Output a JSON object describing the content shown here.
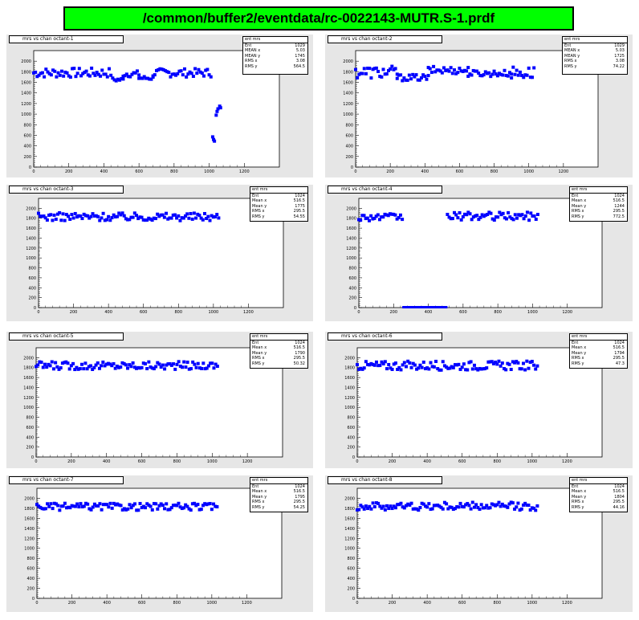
{
  "header": {
    "title": "/common/buffer2/eventdata/rc-0022143-MUTR.S-1.prdf"
  },
  "chart_data": [
    {
      "type": "scatter",
      "title": "mrs vs chan octant-1",
      "xlim": [
        0,
        1400
      ],
      "ylim": [
        0,
        2200
      ],
      "xticks": [
        0,
        200,
        400,
        600,
        800,
        1000,
        1200
      ],
      "xtick_labels": [
        "0",
        "200",
        "400",
        "600",
        "800",
        "1000",
        "1200"
      ],
      "yticks": [
        0,
        200,
        400,
        600,
        800,
        1000,
        1200,
        1400,
        1600,
        1800,
        2000
      ],
      "ytick_labels": [
        "0",
        "200",
        "400",
        "600",
        "800",
        "1000",
        "1200",
        "1400",
        "1600",
        "1800",
        "2000"
      ],
      "stats": {
        "name": "ent mrs",
        "rows": [
          [
            "Ent",
            "1029"
          ],
          [
            "MEAN x",
            "5.03"
          ],
          [
            "MEAN y",
            "1745"
          ],
          [
            "RMS x",
            "3.08"
          ],
          [
            "RMS y",
            "564.5"
          ]
        ]
      },
      "segments": [
        {
          "x0": 0,
          "x1": 440,
          "y": 1780,
          "amp": 90,
          "step": 10
        },
        {
          "x0": 450,
          "x1": 510,
          "y": 1650,
          "amp": 40,
          "step": 10
        },
        {
          "x0": 510,
          "x1": 600,
          "y": 1760,
          "amp": 60,
          "step": 10
        },
        {
          "x0": 600,
          "x1": 680,
          "y": 1680,
          "amp": 40,
          "step": 10
        },
        {
          "x0": 680,
          "x1": 1010,
          "y": 1780,
          "amp": 80,
          "step": 10
        }
      ],
      "points": [
        [
          1020,
          570
        ],
        [
          1025,
          520
        ],
        [
          1030,
          490
        ],
        [
          1040,
          980
        ],
        [
          1045,
          1050
        ],
        [
          1050,
          1100
        ],
        [
          1060,
          1150
        ],
        [
          1065,
          1120
        ]
      ],
      "zero_line": null
    },
    {
      "type": "scatter",
      "title": "mrs vs chan octant-2",
      "xlim": [
        0,
        1400
      ],
      "ylim": [
        0,
        2200
      ],
      "xticks": [
        0,
        200,
        400,
        600,
        800,
        1000,
        1200
      ],
      "xtick_labels": [
        "0",
        "200",
        "400",
        "600",
        "800",
        "1000",
        "1200"
      ],
      "yticks": [
        0,
        200,
        400,
        600,
        800,
        1000,
        1200,
        1400,
        1600,
        1800,
        2000
      ],
      "ytick_labels": [
        "0",
        "200",
        "400",
        "600",
        "800",
        "1000",
        "1200",
        "1400",
        "1600",
        "1800",
        "2000"
      ],
      "stats": {
        "name": "ent mrs",
        "rows": [
          [
            "Ent",
            "1029"
          ],
          [
            "MEAN x",
            "5.03"
          ],
          [
            "MEAN y",
            "1725"
          ],
          [
            "RMS x",
            "3.08"
          ],
          [
            "RMS y",
            "74.22"
          ]
        ]
      },
      "segments": [
        {
          "x0": 0,
          "x1": 240,
          "y": 1790,
          "amp": 120,
          "step": 10
        },
        {
          "x0": 240,
          "x1": 420,
          "y": 1690,
          "amp": 60,
          "step": 10
        },
        {
          "x0": 420,
          "x1": 650,
          "y": 1830,
          "amp": 70,
          "step": 10
        },
        {
          "x0": 650,
          "x1": 900,
          "y": 1770,
          "amp": 60,
          "step": 10
        },
        {
          "x0": 900,
          "x1": 1030,
          "y": 1780,
          "amp": 120,
          "step": 10
        }
      ],
      "points": [],
      "zero_line": null
    },
    {
      "type": "scatter",
      "title": "mrs vs chan octant-3",
      "xlim": [
        0,
        1400
      ],
      "ylim": [
        0,
        2200
      ],
      "xticks": [
        0,
        200,
        400,
        600,
        800,
        1000,
        1200
      ],
      "xtick_labels": [
        "0",
        "200",
        "400",
        "600",
        "800",
        "1000",
        "1200"
      ],
      "yticks": [
        0,
        200,
        400,
        600,
        800,
        1000,
        1200,
        1400,
        1600,
        1800,
        2000
      ],
      "ytick_labels": [
        "0",
        "200",
        "400",
        "600",
        "800",
        "1000",
        "1200",
        "1400",
        "1600",
        "1800",
        "2000"
      ],
      "stats": {
        "name": "ent mrs",
        "rows": [
          [
            "Ent",
            "1024"
          ],
          [
            "Mean x",
            "516.5"
          ],
          [
            "Mean y",
            "1775"
          ],
          [
            "RMS x",
            "295.5"
          ],
          [
            "RMS y",
            "54.55"
          ]
        ]
      },
      "segments": [
        {
          "x0": 0,
          "x1": 1030,
          "y": 1830,
          "amp": 80,
          "step": 10
        }
      ],
      "points": [],
      "zero_line": null
    },
    {
      "type": "scatter",
      "title": "mrs vs chan octant-4",
      "xlim": [
        0,
        1400
      ],
      "ylim": [
        0,
        2200
      ],
      "xticks": [
        0,
        200,
        400,
        600,
        800,
        1000,
        1200
      ],
      "xtick_labels": [
        "0",
        "200",
        "400",
        "600",
        "800",
        "1000",
        "1200"
      ],
      "yticks": [
        0,
        200,
        400,
        600,
        800,
        1000,
        1200,
        1400,
        1600,
        1800,
        2000
      ],
      "ytick_labels": [
        "0",
        "200",
        "400",
        "600",
        "800",
        "1000",
        "1200",
        "1400",
        "1600",
        "1800",
        "2000"
      ],
      "stats": {
        "name": "ent mrs",
        "rows": [
          [
            "Ent",
            "1024"
          ],
          [
            "Mean x",
            "516.5"
          ],
          [
            "Mean y",
            "1244"
          ],
          [
            "RMS x",
            "295.5"
          ],
          [
            "RMS y",
            "772.5"
          ]
        ]
      },
      "segments": [
        {
          "x0": 0,
          "x1": 250,
          "y": 1820,
          "amp": 70,
          "step": 10
        },
        {
          "x0": 510,
          "x1": 1030,
          "y": 1840,
          "amp": 80,
          "step": 10
        }
      ],
      "points": [],
      "zero_line": [
        250,
        510
      ]
    },
    {
      "type": "scatter",
      "title": "mrs vs chan octant-5",
      "xlim": [
        0,
        1400
      ],
      "ylim": [
        0,
        2200
      ],
      "xticks": [
        0,
        200,
        400,
        600,
        800,
        1000,
        1200
      ],
      "xtick_labels": [
        "0",
        "200",
        "400",
        "600",
        "800",
        "1000",
        "1200"
      ],
      "yticks": [
        0,
        200,
        400,
        600,
        800,
        1000,
        1200,
        1400,
        1600,
        1800,
        2000
      ],
      "ytick_labels": [
        "0",
        "200",
        "400",
        "600",
        "800",
        "1000",
        "1200",
        "1400",
        "1600",
        "1800",
        "2000"
      ],
      "stats": {
        "name": "ent mrs",
        "rows": [
          [
            "Ent",
            "1024"
          ],
          [
            "Mean x",
            "516.5"
          ],
          [
            "Mean y",
            "1790"
          ],
          [
            "RMS x",
            "295.5"
          ],
          [
            "RMS y",
            "50.32"
          ]
        ]
      },
      "segments": [
        {
          "x0": 0,
          "x1": 1030,
          "y": 1840,
          "amp": 80,
          "step": 10
        }
      ],
      "points": [],
      "zero_line": null
    },
    {
      "type": "scatter",
      "title": "mrs vs chan octant-6",
      "xlim": [
        0,
        1400
      ],
      "ylim": [
        0,
        2200
      ],
      "xticks": [
        0,
        200,
        400,
        600,
        800,
        1000,
        1200
      ],
      "xtick_labels": [
        "0",
        "200",
        "400",
        "600",
        "800",
        "1000",
        "1200"
      ],
      "yticks": [
        0,
        200,
        400,
        600,
        800,
        1000,
        1200,
        1400,
        1600,
        1800,
        2000
      ],
      "ytick_labels": [
        "0",
        "200",
        "400",
        "600",
        "800",
        "1000",
        "1200",
        "1400",
        "1600",
        "1800",
        "2000"
      ],
      "stats": {
        "name": "ent mrs",
        "rows": [
          [
            "Ent",
            "1024"
          ],
          [
            "Mean x",
            "516.5"
          ],
          [
            "Mean y",
            "1794"
          ],
          [
            "RMS x",
            "295.5"
          ],
          [
            "RMS y",
            "47.3"
          ]
        ]
      },
      "segments": [
        {
          "x0": 0,
          "x1": 1030,
          "y": 1840,
          "amp": 90,
          "step": 10
        }
      ],
      "points": [],
      "zero_line": null
    },
    {
      "type": "scatter",
      "title": "mrs vs chan octant-7",
      "xlim": [
        0,
        1400
      ],
      "ylim": [
        0,
        2200
      ],
      "xticks": [
        0,
        200,
        400,
        600,
        800,
        1000,
        1200
      ],
      "xtick_labels": [
        "0",
        "200",
        "400",
        "600",
        "800",
        "1000",
        "1200"
      ],
      "yticks": [
        0,
        200,
        400,
        600,
        800,
        1000,
        1200,
        1400,
        1600,
        1800,
        2000
      ],
      "ytick_labels": [
        "0",
        "200",
        "400",
        "600",
        "800",
        "1000",
        "1200",
        "1400",
        "1600",
        "1800",
        "2000"
      ],
      "stats": {
        "name": "ent mrs",
        "rows": [
          [
            "Ent",
            "1024"
          ],
          [
            "Mean x",
            "516.5"
          ],
          [
            "Mean y",
            "1795"
          ],
          [
            "RMS x",
            "295.5"
          ],
          [
            "RMS y",
            "54.25"
          ]
        ]
      },
      "segments": [
        {
          "x0": 0,
          "x1": 1030,
          "y": 1830,
          "amp": 70,
          "step": 10
        }
      ],
      "points": [],
      "zero_line": null
    },
    {
      "type": "scatter",
      "title": "mrs vs chan octant-8",
      "xlim": [
        0,
        1400
      ],
      "ylim": [
        0,
        2200
      ],
      "xticks": [
        0,
        200,
        400,
        600,
        800,
        1000,
        1200
      ],
      "xtick_labels": [
        "0",
        "200",
        "400",
        "600",
        "800",
        "1000",
        "1200"
      ],
      "yticks": [
        0,
        200,
        400,
        600,
        800,
        1000,
        1200,
        1400,
        1600,
        1800,
        2000
      ],
      "ytick_labels": [
        "0",
        "200",
        "400",
        "600",
        "800",
        "1000",
        "1200",
        "1400",
        "1600",
        "1800",
        "2000"
      ],
      "stats": {
        "name": "ent mrs",
        "rows": [
          [
            "Ent",
            "1024"
          ],
          [
            "Mean x",
            "516.5"
          ],
          [
            "Mean y",
            "1804"
          ],
          [
            "RMS x",
            "295.5"
          ],
          [
            "RMS y",
            "44.16"
          ]
        ]
      },
      "segments": [
        {
          "x0": 0,
          "x1": 1030,
          "y": 1840,
          "amp": 80,
          "step": 10
        }
      ],
      "points": [],
      "zero_line": null
    }
  ],
  "colors": {
    "marker": "#0000ff",
    "panel_bg": "#e6e6e6",
    "title_bg": "#00ff00"
  }
}
